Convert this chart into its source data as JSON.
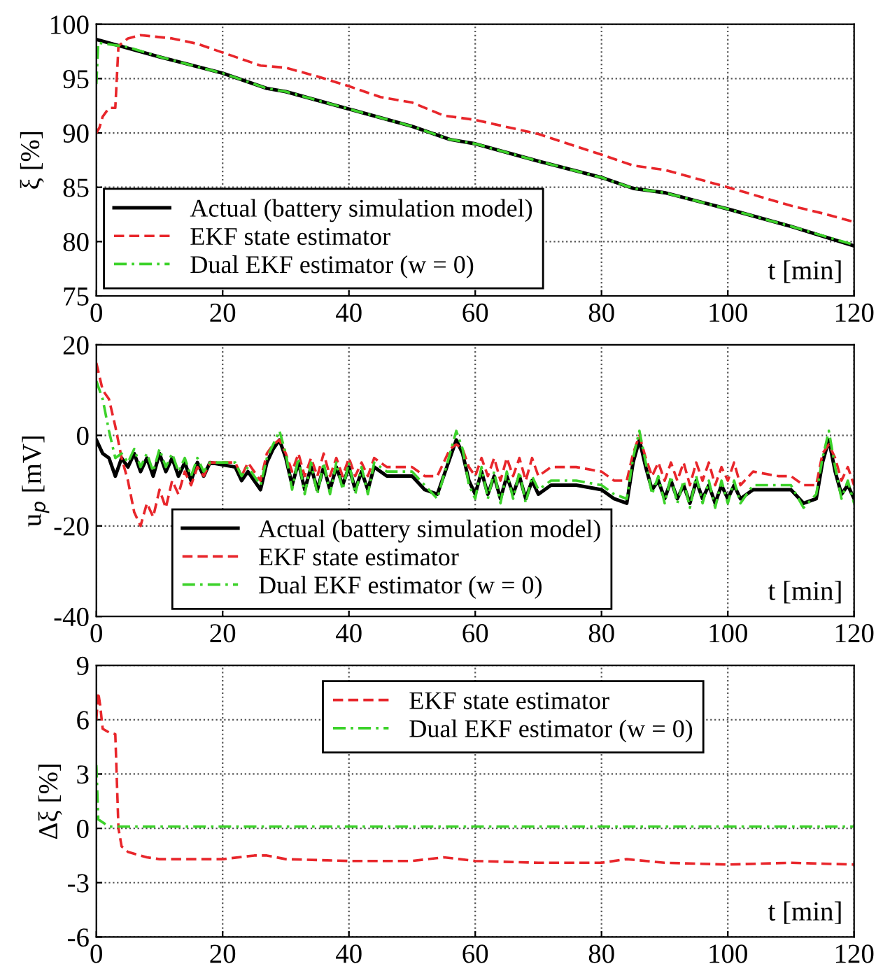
{
  "chart_data": [
    {
      "type": "line",
      "xlabel": "t [min]",
      "ylabel": "ξ [%]",
      "xlim": [
        0,
        120
      ],
      "xticks": [
        0,
        20,
        40,
        60,
        80,
        100,
        120
      ],
      "ylim": [
        75,
        100
      ],
      "yticks": [
        75,
        80,
        85,
        90,
        95,
        100
      ],
      "grid": true,
      "legend": "bottom left",
      "series": [
        {
          "name": "Actual (battery simulation model)",
          "color": "#000000",
          "line_style": "solid",
          "x": [
            0,
            10,
            20,
            27,
            30,
            40,
            50,
            56,
            60,
            70,
            80,
            85,
            90,
            100,
            110,
            120
          ],
          "values": [
            98.6,
            97,
            95.5,
            94.1,
            93.8,
            92.2,
            90.6,
            89.4,
            89,
            87.4,
            85.9,
            84.9,
            84.5,
            83,
            81.4,
            79.6
          ]
        },
        {
          "name": "EKF state estimator",
          "color": "#e8262b",
          "line_style": "dashed",
          "x": [
            0,
            0.5,
            1,
            2,
            3,
            3.5,
            5,
            7,
            12,
            16,
            20,
            26,
            30,
            35,
            40,
            45,
            50,
            55,
            60,
            70,
            80,
            85,
            90,
            100,
            110,
            115,
            120
          ],
          "values": [
            90,
            90.5,
            91.5,
            92.3,
            92.3,
            98,
            98.7,
            99,
            98.7,
            98.2,
            97.4,
            96.2,
            96,
            95.2,
            94.3,
            93.3,
            92.8,
            91.6,
            91.2,
            89.9,
            88,
            87,
            86.6,
            85,
            83.3,
            82.6,
            81.8
          ]
        },
        {
          "name": "Dual EKF estimator (w = 0)",
          "color": "#3cd22a",
          "line_style": "dashdot",
          "x": [
            0,
            0.3,
            5,
            10,
            20,
            27,
            30,
            40,
            50,
            56,
            60,
            70,
            80,
            85,
            90,
            100,
            110,
            120
          ],
          "values": [
            94.5,
            98.3,
            97.9,
            97,
            95.5,
            94.1,
            93.8,
            92.2,
            90.6,
            89.4,
            89,
            87.4,
            85.9,
            84.9,
            84.5,
            83,
            81.4,
            79.7
          ]
        }
      ]
    },
    {
      "type": "line",
      "xlabel": "t [min]",
      "ylabel": "u$_{p}$ [mV]",
      "xlim": [
        0,
        120
      ],
      "xticks": [
        0,
        20,
        40,
        60,
        80,
        100,
        120
      ],
      "ylim": [
        -40,
        20
      ],
      "yticks": [
        {
          "value": -40,
          "label": "-40"
        },
        {
          "value": -20,
          "label": "-20"
        },
        0,
        20
      ],
      "grid": true,
      "legend": "bottom",
      "series": [
        {
          "name": "Actual (battery simulation model)",
          "color": "#000000",
          "line_style": "solid",
          "x": [
            0,
            1,
            2,
            3,
            4,
            5,
            6,
            7,
            8,
            9,
            10,
            11,
            12,
            13,
            14,
            15,
            16,
            17,
            18,
            22,
            23,
            24,
            26,
            27,
            28,
            29,
            30,
            31,
            32,
            33,
            34,
            35,
            36,
            37,
            38,
            39,
            40,
            41,
            42,
            43,
            44,
            46,
            50,
            52,
            54,
            56,
            57,
            58,
            59,
            60,
            61,
            62,
            63,
            64,
            65,
            66,
            67,
            68,
            69,
            70,
            72,
            76,
            80,
            82,
            84,
            85,
            86,
            87,
            88,
            89,
            90,
            91,
            92,
            93,
            94,
            95,
            96,
            97,
            98,
            99,
            100,
            101,
            102,
            104,
            108,
            110,
            112,
            114,
            115,
            116,
            117,
            118,
            119,
            120
          ],
          "values": [
            -1,
            -4,
            -5,
            -9,
            -5,
            -7,
            -4,
            -8,
            -5,
            -9,
            -4,
            -8,
            -5,
            -9,
            -6,
            -10,
            -6,
            -9,
            -6,
            -7,
            -10,
            -8,
            -12,
            -6,
            -3,
            -1,
            -5,
            -11,
            -6,
            -12,
            -7,
            -12,
            -7,
            -12,
            -7,
            -11,
            -7,
            -12,
            -8,
            -12,
            -7,
            -9,
            -9,
            -12,
            -13,
            -5,
            -1,
            -4,
            -10,
            -13,
            -8,
            -13,
            -9,
            -14,
            -9,
            -13,
            -9,
            -14,
            -10,
            -13,
            -11,
            -11,
            -12,
            -14,
            -15,
            -6,
            -1,
            -7,
            -12,
            -10,
            -14,
            -10,
            -14,
            -11,
            -15,
            -10,
            -14,
            -11,
            -15,
            -11,
            -14,
            -11,
            -14,
            -12,
            -12,
            -12,
            -15,
            -14,
            -6,
            -1,
            -8,
            -13,
            -11,
            -14
          ]
        },
        {
          "name": "EKF state estimator",
          "color": "#e8262b",
          "line_style": "dashed",
          "x": [
            0,
            1,
            2,
            3,
            4,
            5,
            6,
            7,
            8,
            9,
            10,
            11,
            12,
            13,
            14,
            15,
            16,
            17,
            18,
            22,
            23,
            24,
            26,
            27,
            28,
            29,
            30,
            31,
            32,
            33,
            34,
            35,
            36,
            37,
            38,
            39,
            40,
            41,
            42,
            43,
            44,
            46,
            50,
            52,
            54,
            56,
            57,
            58,
            59,
            60,
            61,
            62,
            63,
            64,
            65,
            66,
            67,
            68,
            69,
            70,
            72,
            76,
            80,
            82,
            84,
            85,
            86,
            87,
            88,
            89,
            90,
            91,
            92,
            93,
            94,
            95,
            96,
            97,
            98,
            99,
            100,
            101,
            102,
            104,
            108,
            110,
            112,
            114,
            115,
            116,
            117,
            118,
            119,
            120
          ],
          "values": [
            16,
            10,
            8,
            2,
            -5,
            -10,
            -17,
            -20,
            -15,
            -18,
            -12,
            -16,
            -10,
            -13,
            -8,
            -11,
            -7,
            -9,
            -6,
            -6,
            -9,
            -6,
            -10,
            -4,
            -2,
            -1,
            -4,
            -8,
            -4,
            -9,
            -5,
            -9,
            -4,
            -9,
            -5,
            -9,
            -5,
            -9,
            -6,
            -9,
            -5,
            -7,
            -7,
            -9,
            -9,
            -3,
            -2,
            -3,
            -7,
            -9,
            -5,
            -9,
            -5,
            -10,
            -5,
            -9,
            -5,
            -10,
            -5,
            -9,
            -7,
            -7,
            -8,
            -10,
            -10,
            -4,
            0,
            -5,
            -9,
            -6,
            -10,
            -6,
            -10,
            -6,
            -11,
            -6,
            -10,
            -6,
            -11,
            -7,
            -10,
            -6,
            -11,
            -8,
            -9,
            -9,
            -11,
            -11,
            -4,
            -2,
            -5,
            -10,
            -7,
            -11
          ]
        },
        {
          "name": "Dual EKF estimator (w = 0)",
          "color": "#3cd22a",
          "line_style": "dashdot",
          "x": [
            0,
            1,
            2,
            3,
            4,
            5,
            6,
            7,
            8,
            9,
            10,
            11,
            12,
            13,
            14,
            15,
            16,
            17,
            18,
            22,
            23,
            24,
            26,
            27,
            28,
            29,
            30,
            31,
            32,
            33,
            34,
            35,
            36,
            37,
            38,
            39,
            40,
            41,
            42,
            43,
            44,
            46,
            50,
            52,
            54,
            56,
            57,
            58,
            59,
            60,
            61,
            62,
            63,
            64,
            65,
            66,
            67,
            68,
            69,
            70,
            72,
            76,
            80,
            82,
            84,
            85,
            86,
            87,
            88,
            89,
            90,
            91,
            92,
            93,
            94,
            95,
            96,
            97,
            98,
            99,
            100,
            101,
            102,
            104,
            108,
            110,
            112,
            114,
            115,
            116,
            117,
            118,
            119,
            120
          ],
          "values": [
            12,
            8,
            1,
            -5,
            -4,
            -6,
            -3,
            -7,
            -4,
            -8,
            -3,
            -7,
            -4,
            -8,
            -5,
            -9,
            -5,
            -8,
            -6,
            -6,
            -9,
            -7,
            -11,
            -5,
            -2,
            1,
            -4,
            -12,
            -5,
            -13,
            -6,
            -13,
            -6,
            -13,
            -6,
            -12,
            -6,
            -13,
            -7,
            -13,
            -6,
            -8,
            -8,
            -11,
            -14,
            -4,
            1,
            -3,
            -11,
            -14,
            -7,
            -14,
            -8,
            -15,
            -8,
            -14,
            -8,
            -15,
            -9,
            -12,
            -10,
            -10,
            -11,
            -13,
            -14,
            -5,
            1,
            -6,
            -13,
            -9,
            -15,
            -9,
            -15,
            -10,
            -16,
            -9,
            -15,
            -10,
            -16,
            -10,
            -15,
            -10,
            -15,
            -11,
            -11,
            -11,
            -16,
            -13,
            -5,
            1,
            -7,
            -14,
            -10,
            -15
          ]
        }
      ]
    },
    {
      "type": "line",
      "xlabel": "t [min]",
      "ylabel": "Δξ [%]",
      "xlim": [
        0,
        120
      ],
      "xticks": [
        0,
        20,
        40,
        60,
        80,
        100,
        120
      ],
      "ylim": [
        -6,
        9
      ],
      "yticks": [
        {
          "value": -6,
          "label": "-6"
        },
        {
          "value": -3,
          "label": "-3"
        },
        0,
        3,
        6,
        9
      ],
      "grid": true,
      "legend": "top",
      "series": [
        {
          "name": "EKF state estimator",
          "color": "#e8262b",
          "line_style": "dashed",
          "x": [
            0,
            0.3,
            0.6,
            1,
            2,
            3,
            3.5,
            4,
            5,
            8,
            10,
            20,
            25,
            27,
            30,
            40,
            50,
            55,
            60,
            70,
            80,
            84,
            90,
            100,
            110,
            120
          ],
          "values": [
            6,
            7.5,
            6.8,
            5.5,
            5.3,
            5.2,
            0,
            -1,
            -1.3,
            -1.6,
            -1.7,
            -1.7,
            -1.5,
            -1.5,
            -1.7,
            -1.8,
            -1.8,
            -1.6,
            -1.8,
            -1.9,
            -1.9,
            -1.7,
            -1.9,
            -2.0,
            -1.9,
            -2.0
          ]
        },
        {
          "name": "Dual EKF estimator (w = 0)",
          "color": "#3cd22a",
          "line_style": "dashdot",
          "x": [
            0,
            0.3,
            2,
            120
          ],
          "values": [
            3.5,
            0.5,
            0.1,
            0.1
          ]
        }
      ]
    }
  ]
}
